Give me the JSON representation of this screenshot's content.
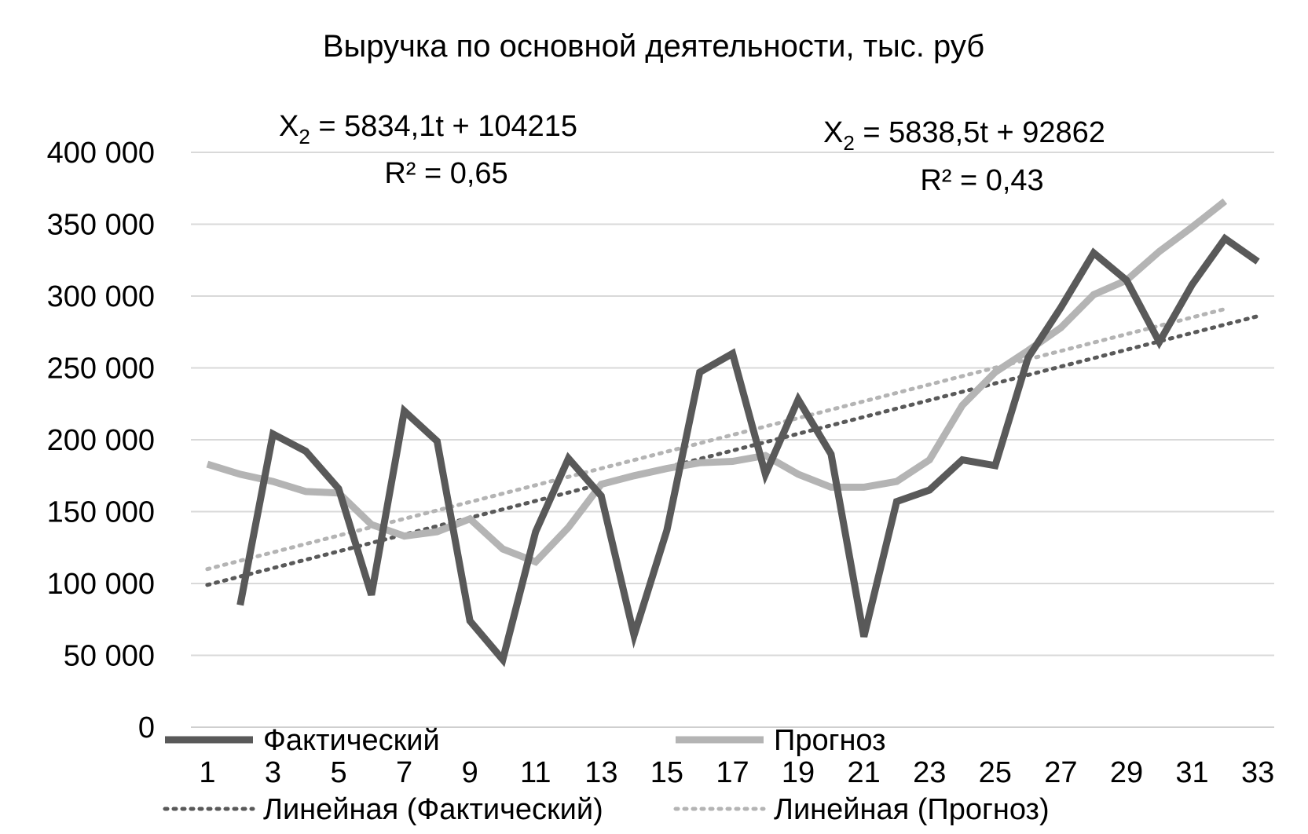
{
  "chart_data": {
    "type": "line",
    "title": "Выручка по основной деятельности, тыс. руб",
    "xlabel": "",
    "ylabel": "",
    "x": [
      1,
      2,
      3,
      4,
      5,
      6,
      7,
      8,
      9,
      10,
      11,
      12,
      13,
      14,
      15,
      16,
      17,
      18,
      19,
      20,
      21,
      22,
      23,
      24,
      25,
      26,
      27,
      28,
      29,
      30,
      31,
      32,
      33
    ],
    "x_tick_labels": [
      "1",
      "3",
      "5",
      "7",
      "9",
      "11",
      "13",
      "15",
      "17",
      "19",
      "21",
      "23",
      "25",
      "27",
      "29",
      "31",
      "33"
    ],
    "y_tick_labels": [
      "0",
      "50 000",
      "100 000",
      "150 000",
      "200 000",
      "250 000",
      "300 000",
      "350 000",
      "400 000"
    ],
    "ylim": [
      0,
      400000
    ],
    "grid": true,
    "legend_position": "bottom",
    "series": [
      {
        "name": "Фактический",
        "color": "#595959",
        "values": [
          null,
          85000,
          204000,
          192000,
          166000,
          92000,
          220000,
          199000,
          74000,
          47000,
          136000,
          187000,
          161000,
          64000,
          137000,
          247000,
          260000,
          176000,
          228000,
          190000,
          63000,
          157000,
          165000,
          186000,
          182000,
          257000,
          292000,
          330000,
          311000,
          268000,
          308000,
          340000,
          324000
        ]
      },
      {
        "name": "Прогноз",
        "color": "#b4b4b4",
        "values": [
          183000,
          176000,
          171000,
          164000,
          163000,
          141000,
          133000,
          136000,
          145000,
          124000,
          115000,
          139000,
          169000,
          175000,
          180000,
          184000,
          185000,
          189000,
          176000,
          167000,
          167000,
          171000,
          186000,
          224000,
          247000,
          262000,
          278000,
          301000,
          311000,
          331000,
          348000,
          366000,
          null
        ]
      }
    ],
    "trendlines": [
      {
        "name": "Линейная (Фактический)",
        "color": "#595959",
        "x_range": [
          1,
          33
        ],
        "y_start": 99000,
        "y_end": 286000
      },
      {
        "name": "Линейная (Прогноз)",
        "color": "#b4b4b4",
        "x_range": [
          1,
          32
        ],
        "y_start": 110000,
        "y_end": 291000
      }
    ],
    "annotations": [
      {
        "line1": "X",
        "sub": "2",
        "line1_rest": " = 5834,1t + 104215",
        "line2": "R² = 0,65"
      },
      {
        "line1": "X",
        "sub": "2",
        "line1_rest": " = 5838,5t + 92862",
        "line2": "R² = 0,43"
      }
    ],
    "legend": [
      {
        "label": "Фактический",
        "style": "solid",
        "color": "#595959"
      },
      {
        "label": "Прогноз",
        "style": "solid",
        "color": "#b4b4b4"
      },
      {
        "label": "Линейная (Фактический)",
        "style": "dotted",
        "color": "#595959"
      },
      {
        "label": "Линейная (Прогноз)",
        "style": "dotted",
        "color": "#b4b4b4"
      }
    ]
  }
}
